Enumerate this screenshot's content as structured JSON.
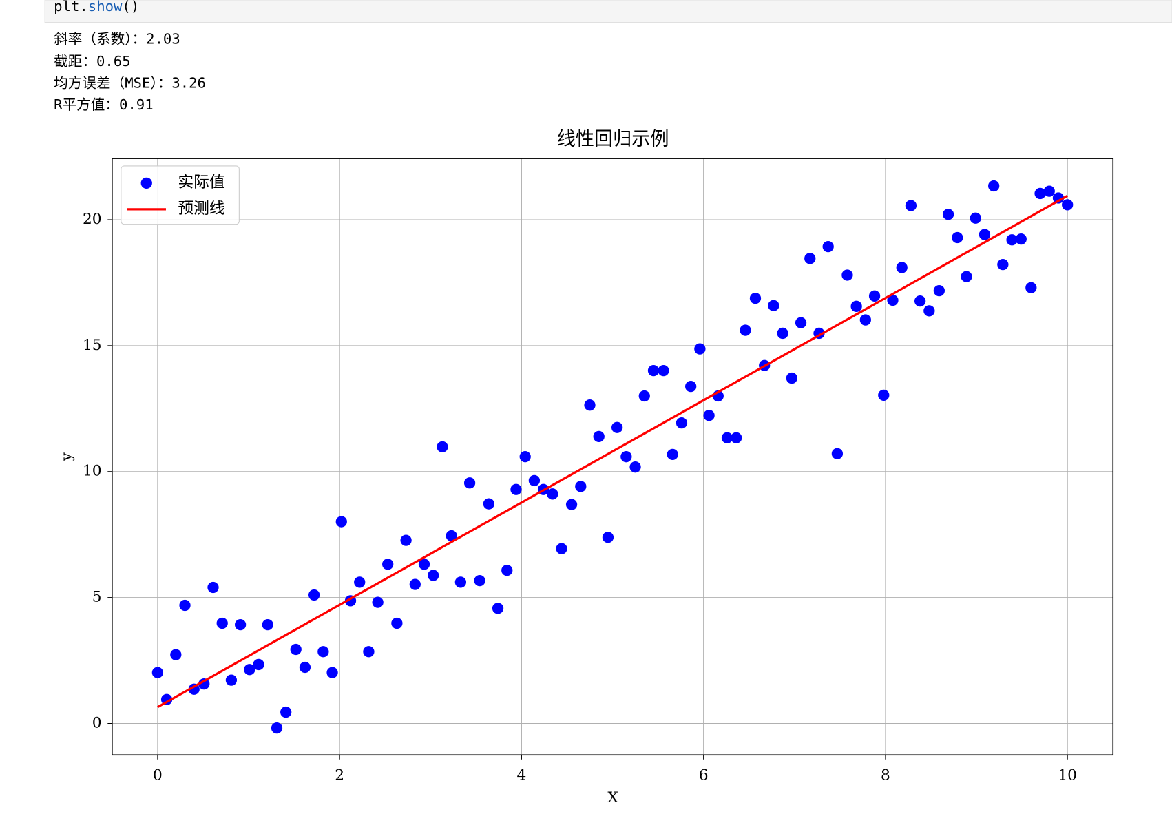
{
  "code": [
    "plt.",
    "show",
    "()"
  ],
  "output": [
    "斜率（系数）：2.03",
    "截距：0.65",
    "均方误差（MSE）：3.26",
    "R平方值：0.91"
  ],
  "chart_data": {
    "type": "scatter",
    "title": "线性回归示例",
    "xlabel": "X",
    "ylabel": "y",
    "xlim": [
      -0.5,
      10.5
    ],
    "ylim": [
      -1.25,
      22.43
    ],
    "xticks": [
      0,
      2,
      4,
      6,
      8,
      10
    ],
    "yticks": [
      0,
      5,
      10,
      15,
      20
    ],
    "grid": true,
    "legend": "upper left",
    "series": [
      {
        "name": "实际值",
        "type": "scatter",
        "color": "blue",
        "x": [
          0,
          0.1,
          0.2,
          0.3,
          0.4,
          0.51,
          0.61,
          0.71,
          0.81,
          0.91,
          1.01,
          1.11,
          1.21,
          1.31,
          1.41,
          1.52,
          1.62,
          1.72,
          1.82,
          1.92,
          2.02,
          2.12,
          2.22,
          2.32,
          2.42,
          2.53,
          2.63,
          2.73,
          2.83,
          2.93,
          3.03,
          3.13,
          3.23,
          3.33,
          3.43,
          3.54,
          3.64,
          3.74,
          3.84,
          3.94,
          4.04,
          4.14,
          4.24,
          4.34,
          4.44,
          4.55,
          4.65,
          4.75,
          4.85,
          4.95,
          5.05,
          5.15,
          5.25,
          5.35,
          5.45,
          5.56,
          5.66,
          5.76,
          5.86,
          5.96,
          6.06,
          6.16,
          6.26,
          6.36,
          6.46,
          6.57,
          6.67,
          6.77,
          6.87,
          6.97,
          7.07,
          7.17,
          7.27,
          7.37,
          7.47,
          7.58,
          7.68,
          7.78,
          7.88,
          7.98,
          8.08,
          8.18,
          8.28,
          8.38,
          8.48,
          8.59,
          8.69,
          8.79,
          8.89,
          8.99,
          9.09,
          9.19,
          9.29,
          9.39,
          9.49,
          9.6,
          9.7,
          9.8,
          9.9,
          10
        ],
        "values": [
          2.02,
          0.95,
          2.73,
          4.69,
          1.36,
          1.57,
          5.4,
          3.98,
          1.72,
          3.92,
          2.14,
          2.34,
          3.92,
          -0.18,
          0.45,
          2.94,
          2.23,
          5.1,
          2.85,
          2.02,
          8.01,
          4.87,
          5.61,
          2.85,
          4.81,
          6.32,
          3.98,
          7.27,
          5.52,
          6.32,
          5.88,
          10.98,
          7.45,
          5.61,
          9.55,
          5.67,
          8.72,
          4.57,
          6.08,
          9.29,
          10.59,
          9.64,
          9.29,
          9.11,
          6.94,
          8.69,
          9.41,
          12.64,
          11.39,
          7.39,
          11.75,
          10.59,
          10.18,
          13.0,
          14.01,
          14.01,
          10.68,
          11.93,
          13.38,
          14.87,
          12.23,
          13.0,
          11.34,
          11.34,
          15.61,
          16.88,
          14.21,
          16.59,
          15.49,
          13.71,
          15.91,
          18.46,
          15.49,
          18.93,
          10.71,
          17.8,
          16.56,
          16.02,
          16.97,
          13.03,
          16.8,
          18.1,
          20.56,
          16.77,
          16.38,
          17.18,
          20.21,
          19.29,
          17.74,
          20.06,
          19.41,
          21.34,
          18.22,
          19.2,
          19.23,
          17.3,
          21.04,
          21.13,
          20.86,
          20.59
        ]
      },
      {
        "name": "预测线",
        "type": "line",
        "color": "red",
        "x": [
          0,
          10
        ],
        "values": [
          0.65,
          20.95
        ]
      }
    ]
  }
}
